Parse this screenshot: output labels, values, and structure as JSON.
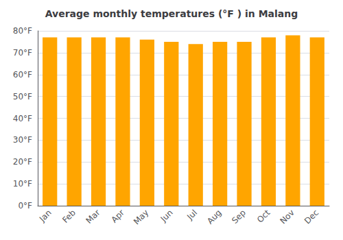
{
  "chart_data": {
    "type": "bar",
    "title": "Average monthly temperatures (°F ) in Malang",
    "categories": [
      "Jan",
      "Feb",
      "Mar",
      "Apr",
      "May",
      "Jun",
      "Jul",
      "Aug",
      "Sep",
      "Oct",
      "Nov",
      "Dec"
    ],
    "values": [
      77,
      77,
      77,
      77,
      76,
      75,
      74,
      75,
      75,
      77,
      78,
      77
    ],
    "color": "#FFA500",
    "ylim": [
      0,
      80
    ],
    "yticks": [
      {
        "value": 0,
        "label": "0°F"
      },
      {
        "value": 10,
        "label": "10°F"
      },
      {
        "value": 20,
        "label": "20°F"
      },
      {
        "value": 30,
        "label": "30°F"
      },
      {
        "value": 40,
        "label": "40°F"
      },
      {
        "value": 50,
        "label": "50°F"
      },
      {
        "value": 60,
        "label": "60°F"
      },
      {
        "value": 70,
        "label": "70°F"
      },
      {
        "value": 80,
        "label": "80°F"
      }
    ],
    "grid": true
  }
}
